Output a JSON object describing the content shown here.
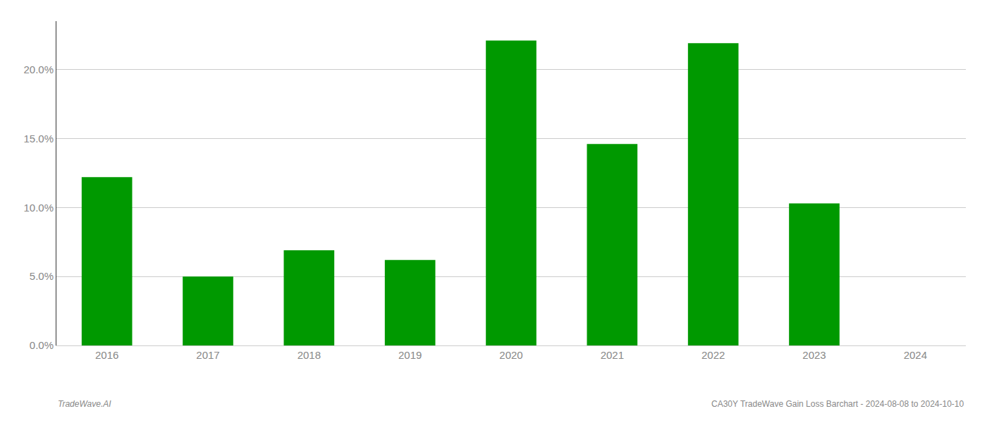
{
  "chart_data": {
    "type": "bar",
    "categories": [
      "2016",
      "2017",
      "2018",
      "2019",
      "2020",
      "2021",
      "2022",
      "2023",
      "2024"
    ],
    "values": [
      0.122,
      0.05,
      0.069,
      0.062,
      0.221,
      0.146,
      0.219,
      0.103,
      0.0
    ],
    "color": "#009900",
    "ylim": [
      0.0,
      0.235
    ],
    "yticks": [
      {
        "value": 0.0,
        "label": "0.0%"
      },
      {
        "value": 0.05,
        "label": "5.0%"
      },
      {
        "value": 0.1,
        "label": "10.0%"
      },
      {
        "value": 0.15,
        "label": "15.0%"
      },
      {
        "value": 0.2,
        "label": "20.0%"
      }
    ],
    "grid": true,
    "annotations": [
      "TradeWave.AI",
      "CA30Y TradeWave Gain Loss Barchart - 2024-08-08 to 2024-10-10"
    ]
  }
}
